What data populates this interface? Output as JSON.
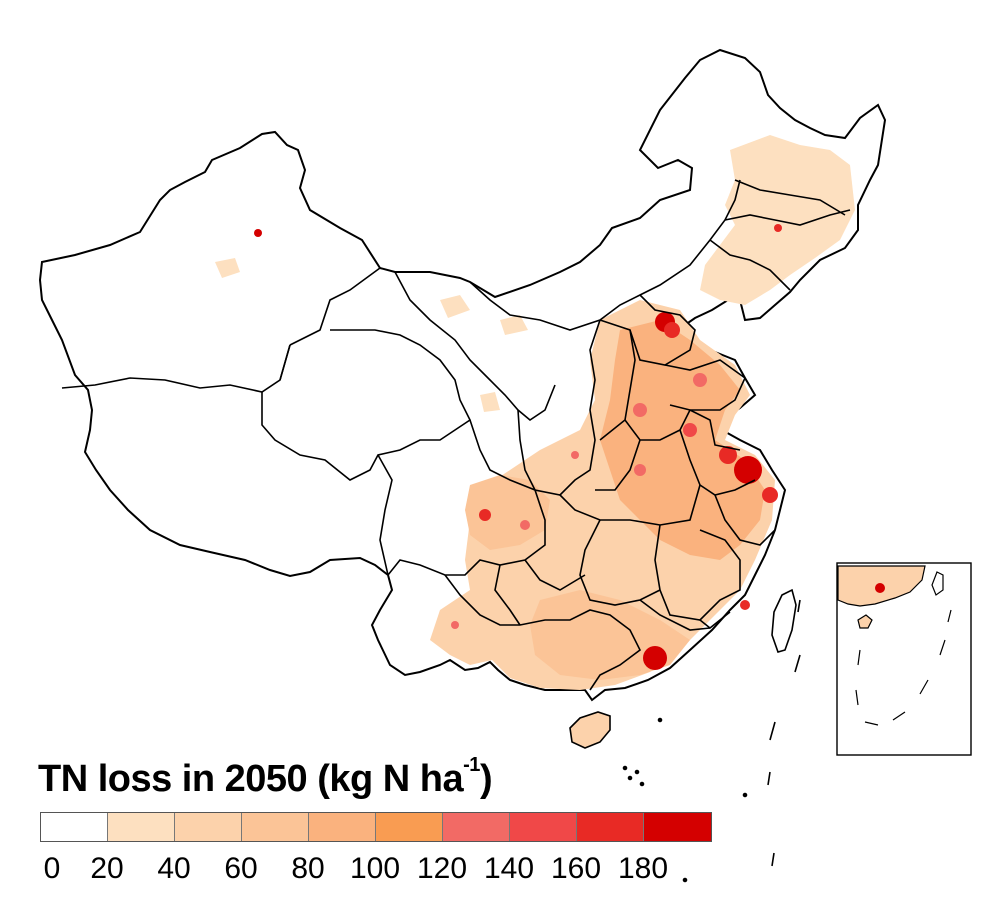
{
  "legend": {
    "title_main": "TN loss in 2050 (kg N ha",
    "title_sup": "-1",
    "title_close": ")",
    "ticks": [
      "0",
      "20",
      "40",
      "60",
      "80",
      "100",
      "120",
      "140",
      "160",
      "180"
    ],
    "colors": [
      "#ffffff",
      "#fde0c0",
      "#fcd2ab",
      "#fbc497",
      "#fab27e",
      "#f99c52",
      "#f26a65",
      "#f04848",
      "#e82a25",
      "#d40000"
    ]
  },
  "chart_data": {
    "type": "choropleth map",
    "region": "China",
    "variable": "TN loss in 2050",
    "unit": "kg N ha-1",
    "bins": [
      {
        "from": 0,
        "to": 20,
        "color": "#ffffff"
      },
      {
        "from": 20,
        "to": 40,
        "color": "#fde0c0"
      },
      {
        "from": 40,
        "to": 60,
        "color": "#fcd2ab"
      },
      {
        "from": 60,
        "to": 80,
        "color": "#fbc497"
      },
      {
        "from": 80,
        "to": 100,
        "color": "#fab27e"
      },
      {
        "from": 100,
        "to": 120,
        "color": "#f99c52"
      },
      {
        "from": 120,
        "to": 140,
        "color": "#f26a65"
      },
      {
        "from": 140,
        "to": 160,
        "color": "#f04848"
      },
      {
        "from": 160,
        "to": 180,
        "color": "#e82a25"
      },
      {
        "from": 180,
        "to": null,
        "color": "#d40000"
      }
    ]
  }
}
